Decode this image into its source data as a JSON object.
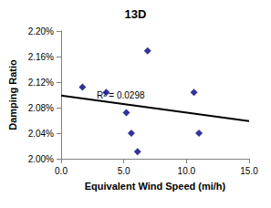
{
  "chart_data": {
    "type": "scatter",
    "title": "13D",
    "x_label": "Equivalent Wind Speed (mi/h)",
    "y_label": "Damping Ratio",
    "annotation": "R² = 0.0298",
    "series": [
      {
        "type": "scatter",
        "marker": "diamond",
        "color": "#000080",
        "x": [
          1.7,
          3.6,
          5.2,
          5.6,
          6.1,
          6.9,
          10.6,
          11.0
        ],
        "values": [
          2.112,
          2.104,
          2.072,
          2.04,
          2.011,
          2.169,
          2.104,
          2.04
        ]
      },
      {
        "type": "line",
        "line_style": "solid",
        "color": "#000000",
        "x": [
          0,
          15
        ],
        "values": [
          2.099,
          2.059
        ]
      }
    ],
    "xlim": [
      0,
      15
    ],
    "xticks": [
      {
        "value": 0,
        "label": "0.0"
      },
      {
        "value": 5,
        "label": "5.0"
      },
      {
        "value": 10,
        "label": "10.0"
      },
      {
        "value": 15,
        "label": "15.0"
      }
    ],
    "ylim": [
      2.0,
      2.2
    ],
    "yticks": [
      {
        "value": 2.0,
        "label": "2.00%"
      },
      {
        "value": 2.04,
        "label": "2.04%"
      },
      {
        "value": 2.08,
        "label": "2.08%"
      },
      {
        "value": 2.12,
        "label": "2.12%"
      },
      {
        "value": 2.16,
        "label": "2.16%"
      },
      {
        "value": 2.2,
        "label": "2.20%"
      }
    ],
    "grid": false
  }
}
